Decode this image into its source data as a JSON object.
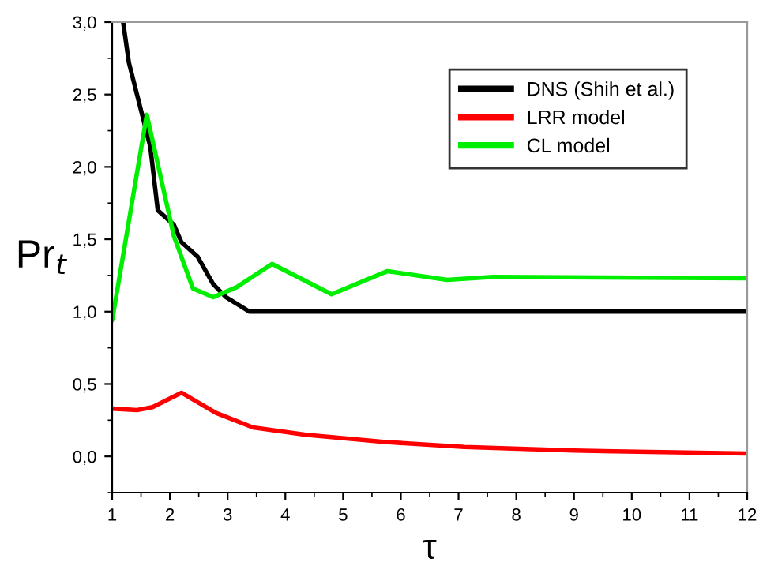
{
  "chart_data": {
    "type": "line",
    "xlabel": "τ",
    "ylabel": "Pr$_{t}$",
    "xlim": [
      1,
      12
    ],
    "ylim": [
      -0.25,
      3.0
    ],
    "xticks": [
      1,
      2,
      3,
      4,
      5,
      6,
      7,
      8,
      9,
      10,
      11,
      12
    ],
    "yticks": [
      {
        "value": 0,
        "label": "0,0"
      },
      {
        "value": 0.5,
        "label": "0,5"
      },
      {
        "value": 1.0,
        "label": "1,0"
      },
      {
        "value": 1.5,
        "label": "1,5"
      },
      {
        "value": 2.0,
        "label": "2,0"
      },
      {
        "value": 2.5,
        "label": "2,5"
      },
      {
        "value": 3.0,
        "label": "3,0"
      }
    ],
    "legend": "top right",
    "grid": false,
    "marker": "none",
    "line_style": "solid",
    "series": [
      {
        "name": "DNS (Shih et al.)",
        "color": "#000000",
        "x": [
          1.19,
          1.29,
          1.66,
          1.79,
          2.07,
          2.2,
          2.48,
          2.75,
          2.97,
          3.38,
          12
        ],
        "values": [
          3.0,
          2.72,
          2.14,
          1.7,
          1.6,
          1.48,
          1.38,
          1.19,
          1.1,
          1.0,
          1.0
        ]
      },
      {
        "name": "LRR model",
        "color": "#ff0000",
        "x": [
          1,
          1.43,
          1.7,
          2.2,
          2.8,
          3.44,
          4.35,
          5.7,
          7.1,
          9,
          12
        ],
        "values": [
          0.33,
          0.32,
          0.34,
          0.44,
          0.3,
          0.2,
          0.15,
          0.1,
          0.065,
          0.04,
          0.02
        ]
      },
      {
        "name": "CL model",
        "color": "#00ee00",
        "x": [
          1,
          1.6,
          2.07,
          2.4,
          2.75,
          3.16,
          3.77,
          4.8,
          5.77,
          6.8,
          7.6,
          12
        ],
        "values": [
          0.94,
          2.36,
          1.52,
          1.16,
          1.1,
          1.17,
          1.33,
          1.12,
          1.28,
          1.22,
          1.24,
          1.23
        ]
      }
    ]
  }
}
